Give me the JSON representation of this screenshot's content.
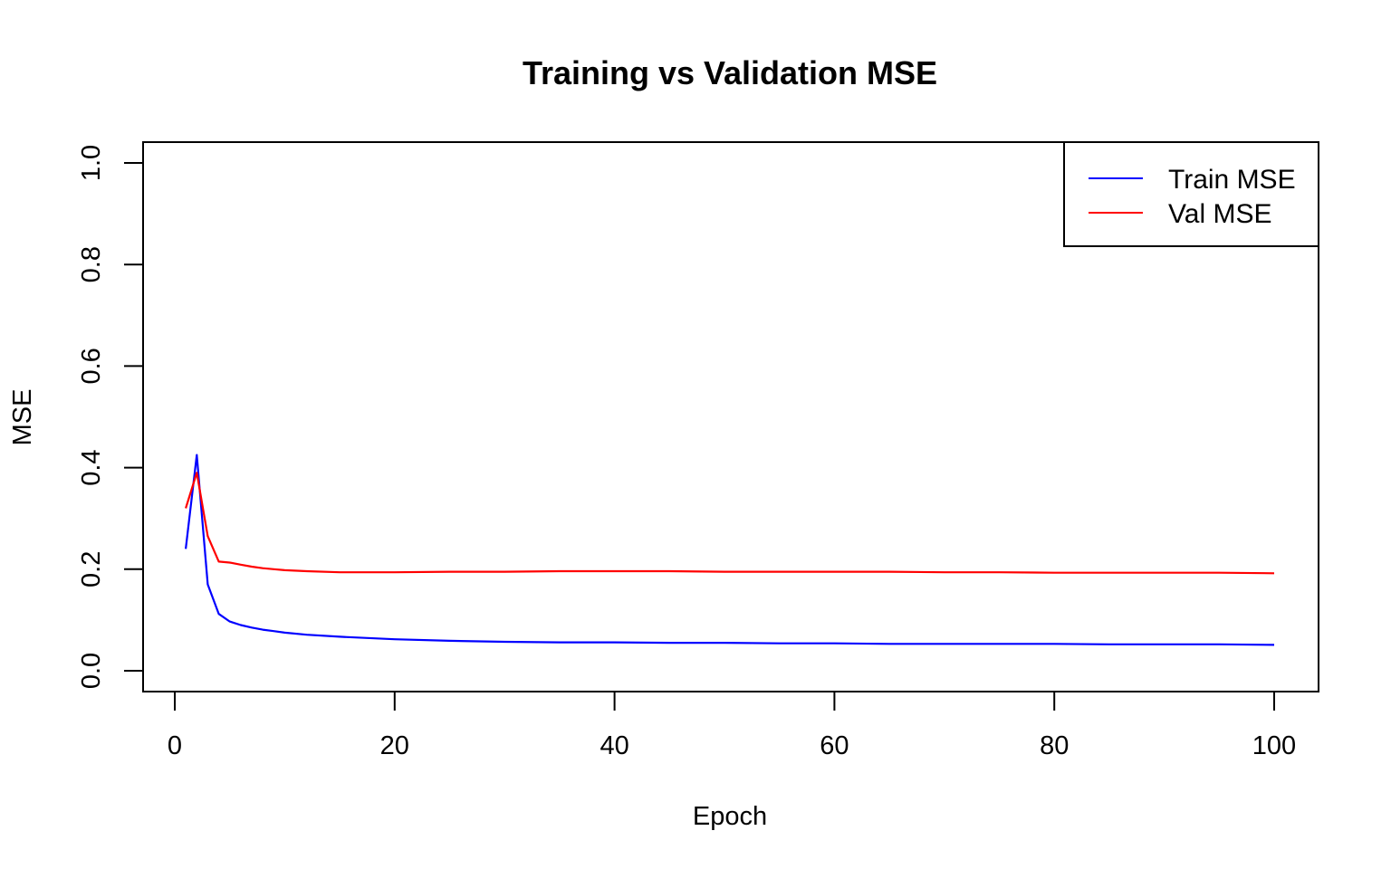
{
  "chart_data": {
    "type": "line",
    "title": "Training vs Validation MSE",
    "xlabel": "Epoch",
    "ylabel": "MSE",
    "xlim": [
      1,
      100
    ],
    "ylim": [
      0,
      1
    ],
    "x_ticks": [
      0,
      20,
      40,
      60,
      80,
      100
    ],
    "y_ticks": [
      0.0,
      0.2,
      0.4,
      0.6,
      0.8,
      1.0
    ],
    "x_tick_labels": [
      "0",
      "20",
      "40",
      "60",
      "80",
      "100"
    ],
    "y_tick_labels": [
      "0.0",
      "0.2",
      "0.4",
      "0.6",
      "0.8",
      "1.0"
    ],
    "grid": false,
    "legend_position": "top-right",
    "x": [
      1,
      2,
      3,
      4,
      5,
      6,
      7,
      8,
      9,
      10,
      12,
      15,
      20,
      25,
      30,
      35,
      40,
      45,
      50,
      55,
      60,
      65,
      70,
      75,
      80,
      85,
      90,
      95,
      100
    ],
    "series": [
      {
        "name": "Train MSE",
        "color": "#0000FF",
        "values": [
          0.24,
          0.425,
          0.17,
          0.112,
          0.097,
          0.09,
          0.085,
          0.081,
          0.078,
          0.075,
          0.071,
          0.067,
          0.062,
          0.059,
          0.057,
          0.056,
          0.056,
          0.055,
          0.055,
          0.054,
          0.054,
          0.053,
          0.053,
          0.053,
          0.053,
          0.052,
          0.052,
          0.052,
          0.051
        ]
      },
      {
        "name": "Val MSE",
        "color": "#FF0000",
        "values": [
          0.32,
          0.39,
          0.265,
          0.215,
          0.213,
          0.209,
          0.205,
          0.202,
          0.2,
          0.198,
          0.196,
          0.194,
          0.194,
          0.195,
          0.195,
          0.196,
          0.196,
          0.196,
          0.195,
          0.195,
          0.195,
          0.195,
          0.194,
          0.194,
          0.193,
          0.193,
          0.193,
          0.193,
          0.192
        ]
      }
    ]
  }
}
